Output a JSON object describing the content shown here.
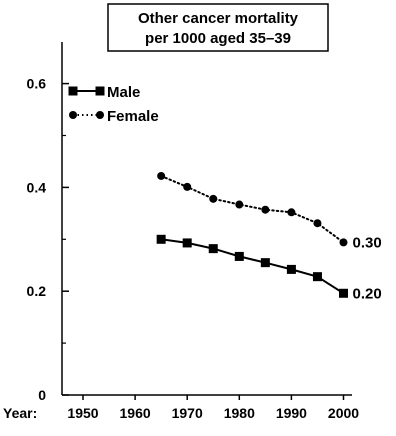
{
  "chart_data": {
    "type": "line",
    "title_lines": [
      "Other cancer mortality",
      "per 1000 aged 35–39"
    ],
    "x_prefix": "Year:",
    "x_ticks": [
      1950,
      1960,
      1970,
      1980,
      1990,
      2000
    ],
    "y_ticks": [
      0,
      0.2,
      0.4,
      0.6
    ],
    "y_tick_labels": [
      "0",
      "0.2",
      "0.4",
      "0.6"
    ],
    "xlim": [
      1948,
      2002
    ],
    "ylim": [
      0,
      0.65
    ],
    "x": [
      1965,
      1970,
      1975,
      1980,
      1985,
      1990,
      1995,
      2000
    ],
    "series": [
      {
        "name": "Male",
        "values": [
          0.3,
          0.293,
          0.282,
          0.267,
          0.255,
          0.242,
          0.228,
          0.196
        ],
        "marker": "square",
        "line": "solid",
        "end_label": "0.20"
      },
      {
        "name": "Female",
        "values": [
          0.422,
          0.401,
          0.378,
          0.367,
          0.357,
          0.352,
          0.331,
          0.294
        ],
        "marker": "circle",
        "line": "dotted",
        "end_label": "0.30"
      }
    ],
    "legend_position": "top-left",
    "grid": false,
    "colors": {
      "line": "#000000",
      "background": "#ffffff"
    }
  }
}
